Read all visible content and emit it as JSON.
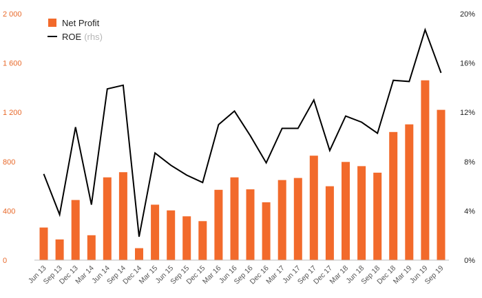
{
  "chart_data": {
    "type": "bar+line",
    "categories": [
      "Jun 13",
      "Sep 13",
      "Dec 13",
      "Mar 14",
      "Jun 14",
      "Sep 14",
      "Dec 14",
      "Mar 15",
      "Jun 15",
      "Sep 15",
      "Dec 15",
      "Mar 16",
      "Jun 16",
      "Sep 16",
      "Dec 16",
      "Mar 17",
      "Jun 17",
      "Sep 17",
      "Dec 17",
      "Mar 18",
      "Jun 18",
      "Sep 18",
      "Dec 18",
      "Mar 19",
      "Jun 19",
      "Sep 19"
    ],
    "series": [
      {
        "name": "Net Profit",
        "type": "bar",
        "axis": "left",
        "color": "#f26a2b",
        "values": [
          265,
          168,
          488,
          202,
          672,
          714,
          97,
          450,
          404,
          356,
          317,
          571,
          672,
          575,
          470,
          650,
          667,
          848,
          600,
          797,
          763,
          710,
          1040,
          1102,
          1460,
          1220
        ]
      },
      {
        "name": "ROE",
        "type": "line",
        "axis": "right",
        "color": "#000000",
        "values": [
          7.0,
          3.7,
          10.8,
          4.5,
          13.9,
          14.2,
          1.9,
          8.7,
          7.7,
          6.9,
          6.3,
          11.0,
          12.1,
          10.1,
          7.9,
          10.7,
          10.7,
          13.0,
          8.9,
          11.7,
          11.2,
          10.3,
          14.6,
          14.5,
          18.7,
          15.2
        ]
      }
    ],
    "legend": {
      "position": "top-left",
      "items": [
        {
          "label": "Net Profit",
          "suffix": "",
          "color": "#f26a2b",
          "marker": "square"
        },
        {
          "label": "ROE",
          "suffix": "(rhs)",
          "color": "#000000",
          "marker": "line"
        }
      ]
    },
    "y_left": {
      "ylim": [
        0,
        2000
      ],
      "ticks": [
        0,
        400,
        800,
        1200,
        1600,
        2000
      ],
      "tick_labels": [
        "0",
        "400",
        "800",
        "1 200",
        "1 600",
        "2 000"
      ],
      "color": "#e8692a"
    },
    "y_right": {
      "ylim": [
        0,
        20
      ],
      "ticks": [
        0,
        4,
        8,
        12,
        16,
        20
      ],
      "tick_labels": [
        "0%",
        "4%",
        "8%",
        "12%",
        "16%",
        "20%"
      ],
      "color": "#222222"
    },
    "grid": false
  }
}
